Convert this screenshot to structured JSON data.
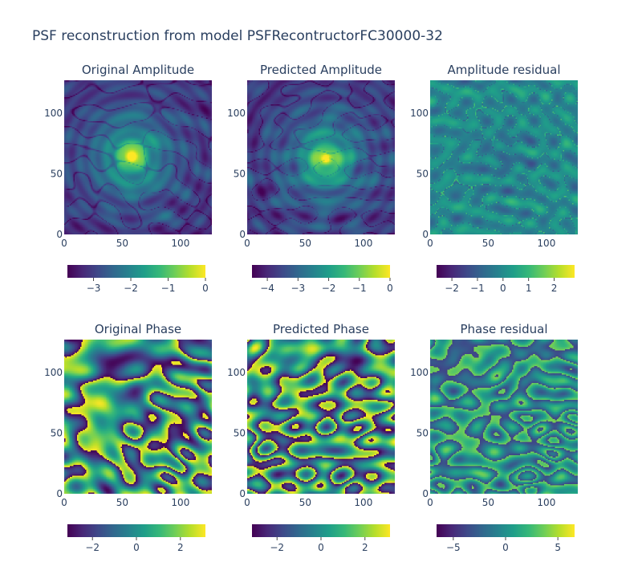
{
  "chart_data": {
    "type": "heatmap",
    "title": "PSF reconstruction from model PSFRecontructorFC30000-32",
    "grid": false,
    "colorscale": "viridis",
    "colorscale_stops": [
      "#440154",
      "#482878",
      "#3e4989",
      "#31688e",
      "#26828e",
      "#1f9e89",
      "#35b779",
      "#6ece58",
      "#b5de2b",
      "#fde725"
    ],
    "x_ticks": [
      "0",
      "50",
      "100"
    ],
    "y_ticks": [
      "0",
      "50",
      "100"
    ],
    "xlim": [
      0,
      127
    ],
    "ylim": [
      0,
      127
    ],
    "panels": [
      {
        "title": "Original Amplitude",
        "kind": "amplitude",
        "center": [
          58,
          64
        ],
        "zrange": [
          -3.7,
          0
        ],
        "colorbar_ticks": [
          "−3",
          "−2",
          "−1",
          "0"
        ],
        "colorbar_tick_values": [
          -3,
          -2,
          -1,
          0
        ]
      },
      {
        "title": "Predicted Amplitude",
        "kind": "amplitude",
        "center": [
          68,
          62
        ],
        "zrange": [
          -4.5,
          0
        ],
        "colorbar_ticks": [
          "−4",
          "−3",
          "−2",
          "−1",
          "0"
        ],
        "colorbar_tick_values": [
          -4,
          -3,
          -2,
          -1,
          0
        ]
      },
      {
        "title": "Amplitude residual",
        "kind": "residual",
        "center": [
          63,
          63
        ],
        "zrange": [
          -2.6,
          2.8
        ],
        "colorbar_ticks": [
          "−2",
          "−1",
          "0",
          "1",
          "2"
        ],
        "colorbar_tick_values": [
          -2,
          -1,
          0,
          1,
          2
        ]
      },
      {
        "title": "Original Phase",
        "kind": "phase",
        "center": [
          58,
          64
        ],
        "zrange": [
          -3.14,
          3.14
        ],
        "colorbar_ticks": [
          "−2",
          "0",
          "2"
        ],
        "colorbar_tick_values": [
          -2,
          0,
          2
        ]
      },
      {
        "title": "Predicted Phase",
        "kind": "phase",
        "center": [
          68,
          62
        ],
        "zrange": [
          -3.14,
          3.14
        ],
        "colorbar_ticks": [
          "−2",
          "0",
          "2"
        ],
        "colorbar_tick_values": [
          -2,
          0,
          2
        ]
      },
      {
        "title": "Phase residual",
        "kind": "phase-residual",
        "center": [
          63,
          63
        ],
        "zrange": [
          -6.6,
          6.6
        ],
        "colorbar_ticks": [
          "−5",
          "0",
          "5"
        ],
        "colorbar_tick_values": [
          -5,
          0,
          5
        ]
      }
    ]
  }
}
